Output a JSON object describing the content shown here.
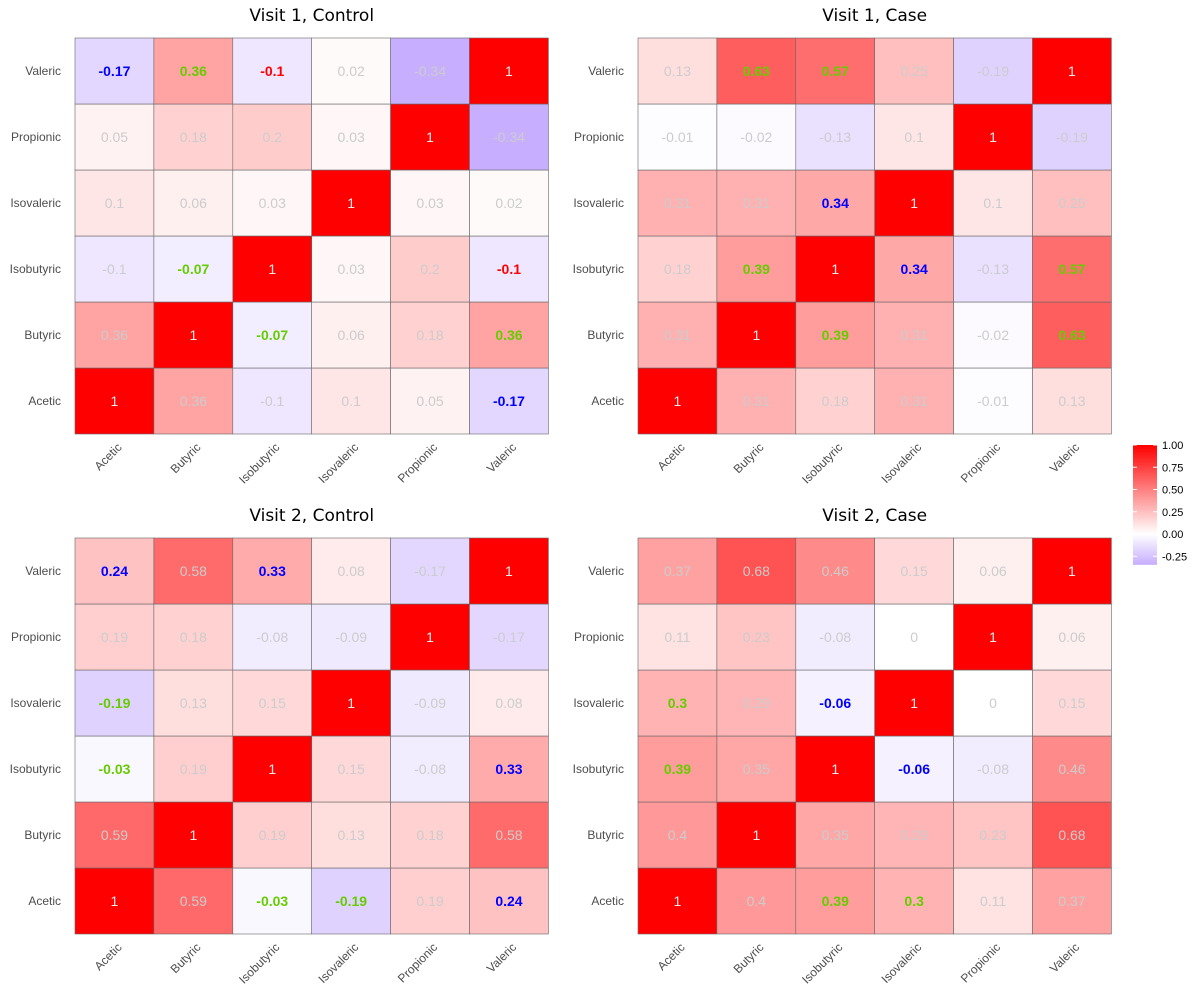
{
  "chart_data": {
    "type": "heatmap",
    "variables": [
      "Acetic",
      "Butyric",
      "Isobutyric",
      "Isovaleric",
      "Propionic",
      "Valeric"
    ],
    "color_scale": {
      "low": "#c7aeff",
      "mid": "#ffffff",
      "high": "#ff0000",
      "range": [
        -0.34,
        1.0
      ],
      "ticks": [
        1.0,
        0.75,
        0.5,
        0.25,
        0.0,
        -0.25
      ],
      "tick_labels": [
        "1.00",
        "0.75",
        "0.50",
        "0.25",
        "0.00",
        "-0.25"
      ]
    },
    "label_colors": {
      "plain": "#cccccc",
      "green": "#66cc00",
      "blue": "#0000ff",
      "red": "#ff0000"
    },
    "panels": [
      {
        "title": "Visit 1, Control",
        "matrix": [
          [
            1,
            0.36,
            -0.1,
            0.1,
            0.05,
            -0.17
          ],
          [
            0.36,
            1,
            -0.07,
            0.06,
            0.18,
            0.36
          ],
          [
            -0.1,
            -0.07,
            1,
            0.03,
            0.2,
            -0.1
          ],
          [
            0.1,
            0.06,
            0.03,
            1,
            0.03,
            0.02
          ],
          [
            0.05,
            0.18,
            0.2,
            0.03,
            1,
            -0.34
          ],
          [
            -0.17,
            0.36,
            -0.1,
            0.02,
            -0.34,
            1
          ]
        ],
        "highlights": [
          [
            null,
            null,
            null,
            null,
            null,
            "blue"
          ],
          [
            null,
            null,
            "green",
            null,
            null,
            "green"
          ],
          [
            null,
            "green",
            null,
            null,
            null,
            "red"
          ],
          [
            null,
            null,
            null,
            null,
            null,
            null
          ],
          [
            null,
            null,
            null,
            null,
            null,
            null
          ],
          [
            "blue",
            "green",
            "red",
            null,
            null,
            null
          ]
        ]
      },
      {
        "title": "Visit 1, Case",
        "matrix": [
          [
            1,
            0.31,
            0.18,
            0.31,
            -0.01,
            0.13
          ],
          [
            0.31,
            1,
            0.39,
            0.31,
            -0.02,
            0.63
          ],
          [
            0.18,
            0.39,
            1,
            0.34,
            -0.13,
            0.57
          ],
          [
            0.31,
            0.31,
            0.34,
            1,
            0.1,
            0.25
          ],
          [
            -0.01,
            -0.02,
            -0.13,
            0.1,
            1,
            -0.19
          ],
          [
            0.13,
            0.63,
            0.57,
            0.25,
            -0.19,
            1
          ]
        ],
        "highlights": [
          [
            null,
            null,
            null,
            null,
            null,
            null
          ],
          [
            null,
            null,
            "green",
            null,
            null,
            "green"
          ],
          [
            null,
            "green",
            null,
            "blue",
            null,
            "green"
          ],
          [
            null,
            null,
            "blue",
            null,
            null,
            null
          ],
          [
            null,
            null,
            null,
            null,
            null,
            null
          ],
          [
            null,
            "green",
            "green",
            null,
            null,
            null
          ]
        ]
      },
      {
        "title": "Visit 2, Control",
        "matrix": [
          [
            1,
            0.59,
            -0.03,
            -0.19,
            0.19,
            0.24
          ],
          [
            0.59,
            1,
            0.19,
            0.13,
            0.18,
            0.58
          ],
          [
            -0.03,
            0.19,
            1,
            0.15,
            -0.08,
            0.33
          ],
          [
            -0.19,
            0.13,
            0.15,
            1,
            -0.09,
            0.08
          ],
          [
            0.19,
            0.18,
            -0.08,
            -0.09,
            1,
            -0.17
          ],
          [
            0.24,
            0.58,
            0.33,
            0.08,
            -0.17,
            1
          ]
        ],
        "highlights": [
          [
            null,
            null,
            "green",
            "green",
            null,
            "blue"
          ],
          [
            null,
            null,
            null,
            null,
            null,
            null
          ],
          [
            "green",
            null,
            null,
            null,
            null,
            "blue"
          ],
          [
            "green",
            null,
            null,
            null,
            null,
            null
          ],
          [
            null,
            null,
            null,
            null,
            null,
            null
          ],
          [
            "blue",
            null,
            "blue",
            null,
            null,
            null
          ]
        ]
      },
      {
        "title": "Visit 2, Case",
        "matrix": [
          [
            1,
            0.4,
            0.39,
            0.3,
            0.11,
            0.37
          ],
          [
            0.4,
            1,
            0.35,
            0.29,
            0.23,
            0.68
          ],
          [
            0.39,
            0.35,
            1,
            -0.06,
            -0.08,
            0.46
          ],
          [
            0.3,
            0.29,
            -0.06,
            1,
            0,
            0.15
          ],
          [
            0.11,
            0.23,
            -0.08,
            0,
            1,
            0.06
          ],
          [
            0.37,
            0.68,
            0.46,
            0.15,
            0.06,
            1
          ]
        ],
        "highlights": [
          [
            null,
            null,
            "green",
            "green",
            null,
            null
          ],
          [
            null,
            null,
            null,
            null,
            null,
            null
          ],
          [
            "green",
            null,
            null,
            "blue",
            null,
            null
          ],
          [
            "green",
            null,
            "blue",
            null,
            null,
            null
          ],
          [
            null,
            null,
            null,
            null,
            null,
            null
          ],
          [
            null,
            null,
            null,
            null,
            null,
            null
          ]
        ]
      }
    ]
  }
}
